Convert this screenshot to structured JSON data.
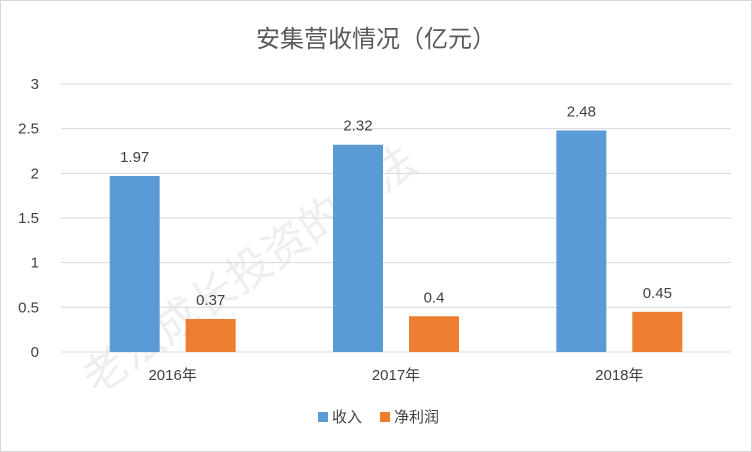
{
  "chart_data": {
    "type": "bar",
    "title": "安集营收情况（亿元）",
    "categories": [
      "2016年",
      "2017年",
      "2018年"
    ],
    "series": [
      {
        "name": "收入",
        "values": [
          1.97,
          2.32,
          2.48
        ],
        "color": "#5b9bd5"
      },
      {
        "name": "净利润",
        "values": [
          0.37,
          0.4,
          0.45
        ],
        "color": "#ed7d31"
      }
    ],
    "yticks": [
      "0",
      "0.5",
      "1",
      "1.5",
      "2",
      "2.5",
      "3"
    ],
    "ylim": [
      0,
      3
    ],
    "xlabel": "",
    "ylabel": "",
    "grid": true,
    "legend": "bottom-center",
    "data_labels": [
      "1.97",
      "2.32",
      "2.48",
      "0.37",
      "0.4",
      "0.45"
    ]
  },
  "watermark": "老法成长投资的老法"
}
